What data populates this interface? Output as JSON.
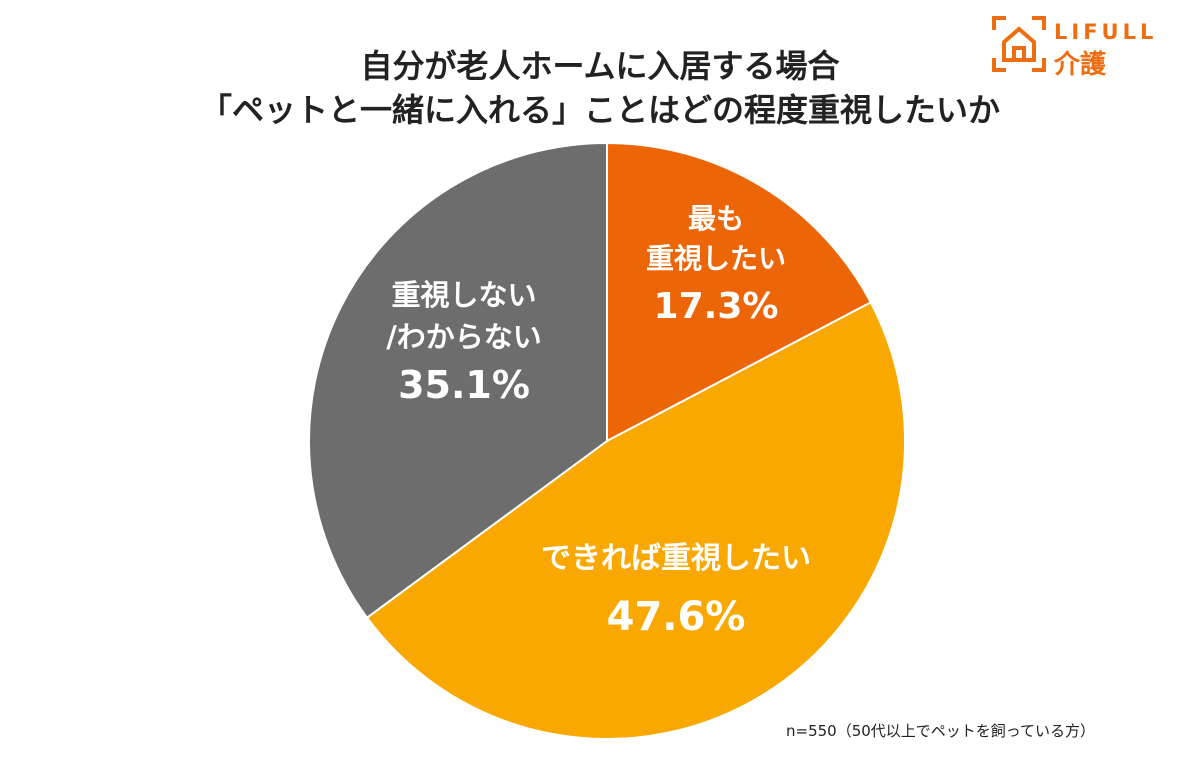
{
  "title": {
    "line1": "自分が老人ホームに入居する場合",
    "line2": "「ペットと一緒に入れる」ことはどの程度重視したいか"
  },
  "logo": {
    "brand": "LIFULL",
    "sub": "介護",
    "color": "#ee6d11"
  },
  "chart_data": {
    "type": "pie",
    "start": "12 o'clock, clockwise",
    "slices": [
      {
        "label_lines": [
          "最も",
          "重視したい"
        ],
        "value": 17.3,
        "value_label": "17.3%",
        "color": "#ec6608"
      },
      {
        "label_lines": [
          "できれば重視したい"
        ],
        "value": 47.6,
        "value_label": "47.6%",
        "color": "#f8a800"
      },
      {
        "label_lines": [
          "重視しない",
          "/わからない"
        ],
        "value": 35.1,
        "value_label": "35.1%",
        "color": "#6d6d6d"
      }
    ]
  },
  "footnote": "n=550（50代以上でペットを飼っている方）"
}
